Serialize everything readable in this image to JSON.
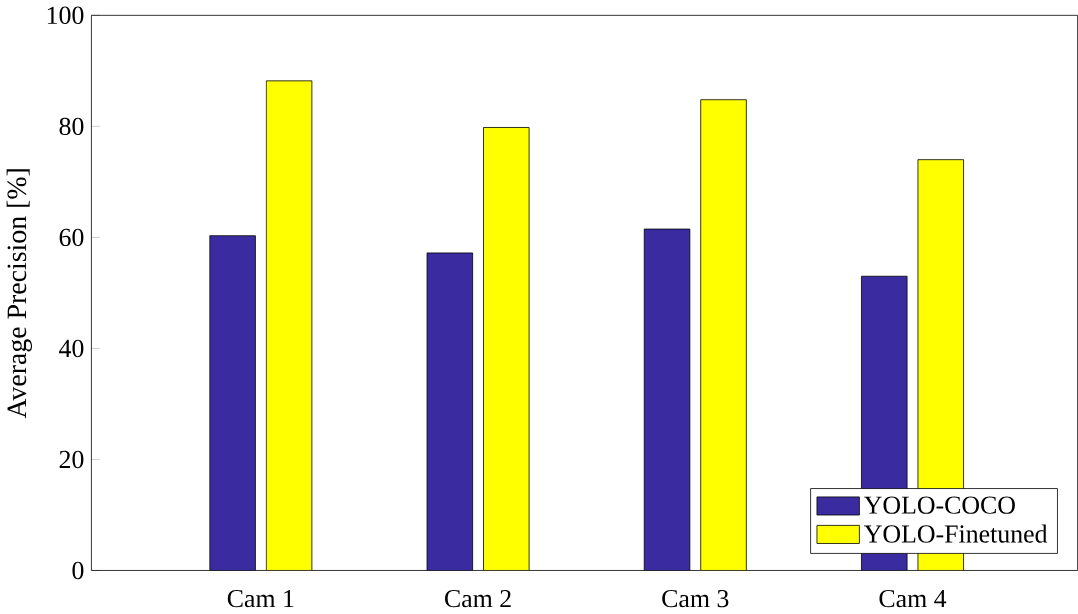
{
  "chart_data": {
    "type": "bar",
    "ylabel": "Average Precision [%]",
    "categories": [
      "Cam 1",
      "Cam 2",
      "Cam 3",
      "Cam 4"
    ],
    "series": [
      {
        "name": "YOLO-COCO",
        "color": "#3a2ca0",
        "values": [
          60.3,
          57.2,
          61.5,
          53
        ]
      },
      {
        "name": "YOLO-Finetuned",
        "color": "#ffff00",
        "values": [
          88.2,
          79.8,
          84.8,
          74
        ]
      }
    ],
    "ylim": [
      0,
      100
    ],
    "yticks": [
      0,
      20,
      40,
      60,
      80,
      100
    ],
    "legend": "bottom right"
  }
}
